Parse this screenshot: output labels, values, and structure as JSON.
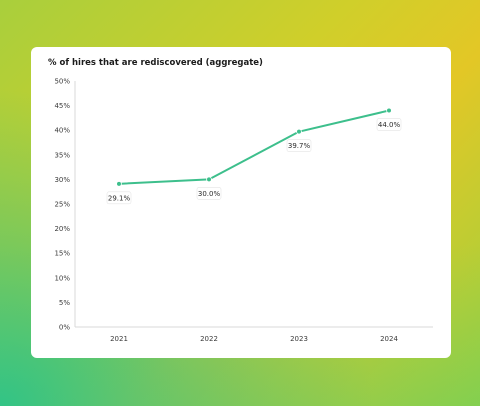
{
  "chart_data": {
    "type": "line",
    "title": "% of hires that are rediscovered (aggregate)",
    "categories": [
      "2021",
      "2022",
      "2023",
      "2024"
    ],
    "series": [
      {
        "values": [
          29.1,
          30.0,
          39.7,
          44.0
        ]
      }
    ],
    "data_labels": [
      "29.1%",
      "30.0%",
      "39.7%",
      "44.0%"
    ],
    "y_ticks": [
      "0%",
      "5%",
      "10%",
      "15%",
      "20%",
      "25%",
      "30%",
      "35%",
      "40%",
      "45%",
      "50%"
    ],
    "ylim": [
      0,
      50
    ],
    "grid": false,
    "colors": {
      "line": "#3dbf8c",
      "axis": "#d8d8d8"
    }
  }
}
